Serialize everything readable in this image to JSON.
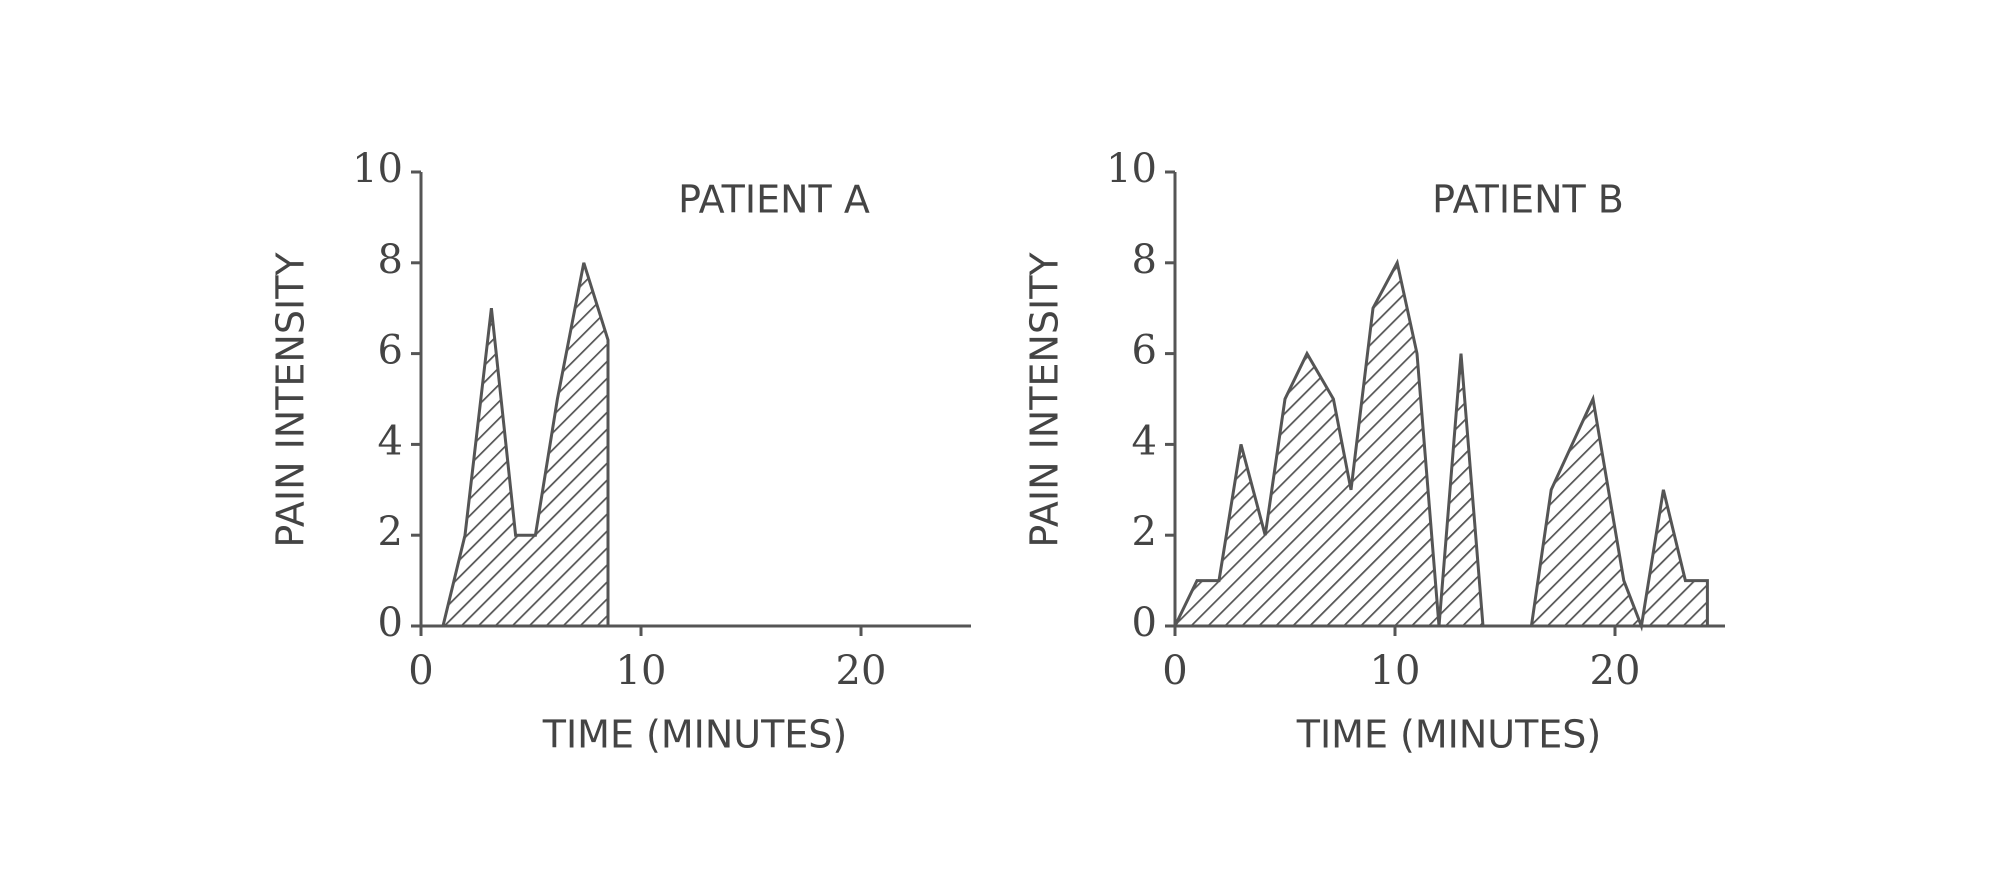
{
  "chart_data": [
    {
      "type": "area",
      "title": "PATIENT A",
      "x_label": "TIME (MINUTES)",
      "y_label": "PAIN INTENSITY",
      "x": [
        1,
        2,
        3.2,
        4.3,
        5.2,
        6.2,
        7.4,
        8.5,
        8.5
      ],
      "values": [
        0,
        2,
        7,
        2,
        2,
        5,
        8,
        6.3,
        0
      ],
      "xlim": [
        0,
        25
      ],
      "ylim": [
        0,
        10
      ],
      "xticks": [
        0,
        10,
        20
      ],
      "yticks": [
        0,
        2,
        4,
        6,
        8,
        10
      ],
      "color": "#555555"
    },
    {
      "type": "area",
      "title": "PATIENT B",
      "x_label": "TIME (MINUTES)",
      "y_label": "PAIN INTENSITY",
      "x": [
        0,
        1,
        2,
        3,
        4.1,
        5,
        6,
        7.2,
        8,
        9,
        10.1,
        11,
        12,
        13,
        14,
        16.2,
        17.1,
        19,
        20.4,
        21.2,
        22.2,
        23.2,
        24.2,
        24.2
      ],
      "values": [
        0,
        1,
        1,
        4,
        2,
        5,
        6,
        5,
        3,
        7,
        8,
        6,
        0,
        6,
        0,
        0,
        3,
        5,
        1,
        0,
        3,
        1,
        1,
        0
      ],
      "xlim": [
        0,
        25
      ],
      "ylim": [
        0,
        10
      ],
      "xticks": [
        0,
        10,
        20
      ],
      "yticks": [
        0,
        2,
        4,
        6,
        8,
        10
      ],
      "color": "#555555"
    }
  ]
}
